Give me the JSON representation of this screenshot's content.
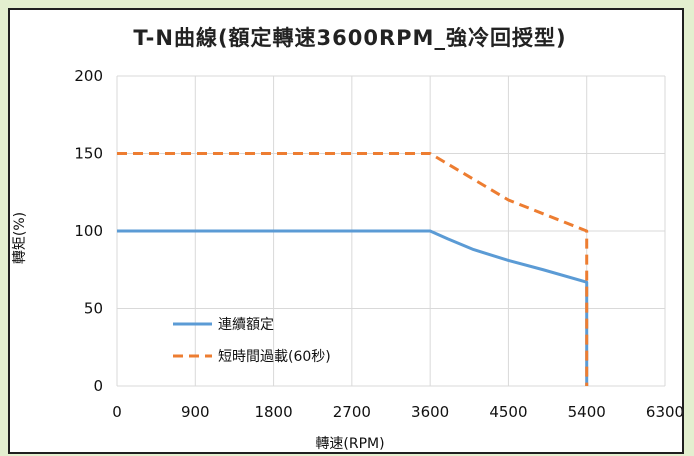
{
  "chart_data": {
    "type": "line",
    "title": "T-N曲線(額定轉速3600RPM_強冷回授型)",
    "xlabel": "轉速(RPM)",
    "ylabel": "轉矩(%)",
    "xlim": [
      0,
      6300
    ],
    "ylim": [
      0,
      200
    ],
    "xticks": [
      0,
      900,
      1800,
      2700,
      3600,
      4500,
      5400,
      6300
    ],
    "yticks": [
      0,
      50,
      100,
      150,
      200
    ],
    "grid": true,
    "legend_position": "lower-left",
    "series": [
      {
        "name": "連續額定",
        "style": "solid",
        "color": "#5b9bd5",
        "x": [
          0,
          3600,
          3800,
          4100,
          4500,
          4900,
          5400,
          5400
        ],
        "y": [
          100,
          100,
          95,
          88,
          81,
          75,
          67,
          0
        ]
      },
      {
        "name": "短時間過載(60秒)",
        "style": "dashed",
        "color": "#ed7d31",
        "x": [
          0,
          3600,
          4500,
          5400,
          5400
        ],
        "y": [
          150,
          150,
          120,
          100,
          0
        ]
      }
    ]
  }
}
